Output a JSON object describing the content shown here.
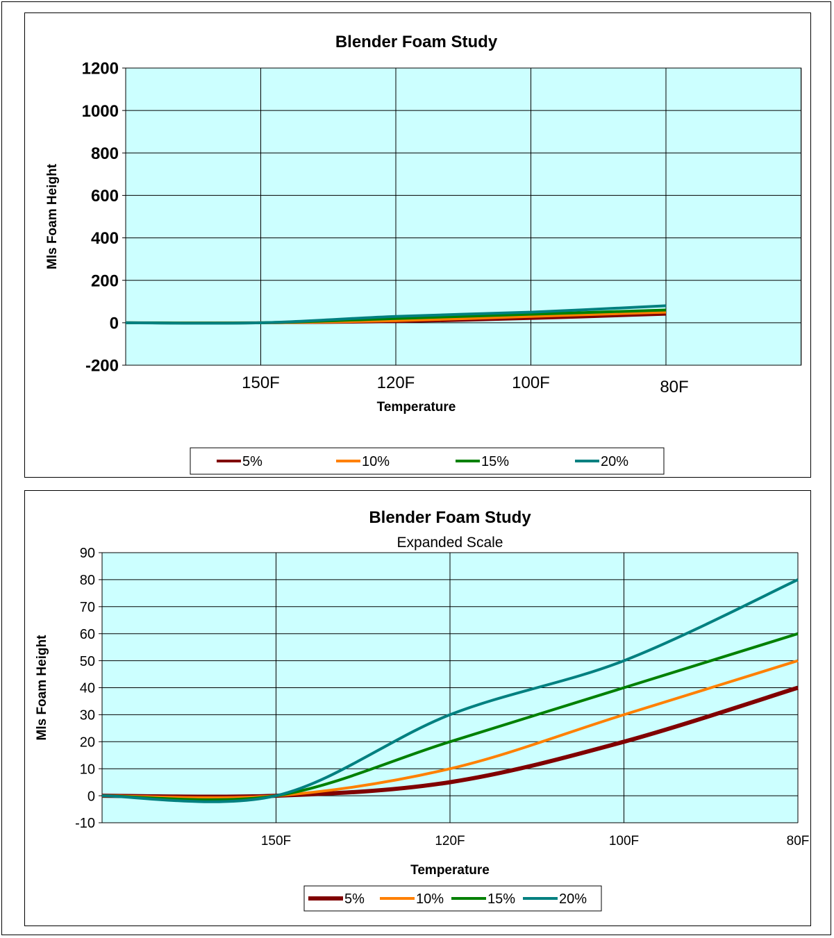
{
  "chart_data": [
    {
      "type": "line",
      "title": "Blender Foam Study",
      "subtitle": "",
      "xlabel": "Temperature",
      "ylabel": "Mls Foam Height",
      "categories": [
        "",
        "150F",
        "120F",
        "100F",
        "80F"
      ],
      "ylim": [
        -200,
        1200
      ],
      "yticks": [
        -200,
        0,
        200,
        400,
        600,
        800,
        1000,
        1200
      ],
      "ytick_labels": [
        "-200",
        "0",
        "200",
        "400",
        "600",
        "800",
        "1000",
        "1200"
      ],
      "grid": true,
      "legend_position": "bottom",
      "plot_background": "#ccffff",
      "series": [
        {
          "name": "5%",
          "color": "#800000",
          "values": [
            0,
            0,
            5,
            20,
            40
          ]
        },
        {
          "name": "10%",
          "color": "#ff8000",
          "values": [
            0,
            0,
            10,
            30,
            50
          ]
        },
        {
          "name": "15%",
          "color": "#008000",
          "values": [
            0,
            0,
            20,
            40,
            60
          ]
        },
        {
          "name": "20%",
          "color": "#008080",
          "values": [
            0,
            0,
            30,
            50,
            80
          ]
        }
      ]
    },
    {
      "type": "line",
      "title": "Blender Foam Study",
      "subtitle": "Expanded Scale",
      "xlabel": "Temperature",
      "ylabel": "Mls Foam Height",
      "categories": [
        "",
        "150F",
        "120F",
        "100F",
        "80F"
      ],
      "ylim": [
        -10,
        90
      ],
      "yticks": [
        -10,
        0,
        10,
        20,
        30,
        40,
        50,
        60,
        70,
        80,
        90
      ],
      "ytick_labels": [
        "-10",
        "0",
        "10",
        "20",
        "30",
        "40",
        "50",
        "60",
        "70",
        "80",
        "90"
      ],
      "grid": true,
      "legend_position": "bottom",
      "plot_background": "#ccffff",
      "series": [
        {
          "name": "5%",
          "color": "#800000",
          "values": [
            0,
            0,
            5,
            20,
            40
          ]
        },
        {
          "name": "10%",
          "color": "#ff8000",
          "values": [
            0,
            0,
            10,
            30,
            50
          ]
        },
        {
          "name": "15%",
          "color": "#008000",
          "values": [
            0,
            0,
            20,
            40,
            60
          ]
        },
        {
          "name": "20%",
          "color": "#008080",
          "values": [
            0,
            0,
            30,
            50,
            80
          ]
        }
      ]
    }
  ]
}
